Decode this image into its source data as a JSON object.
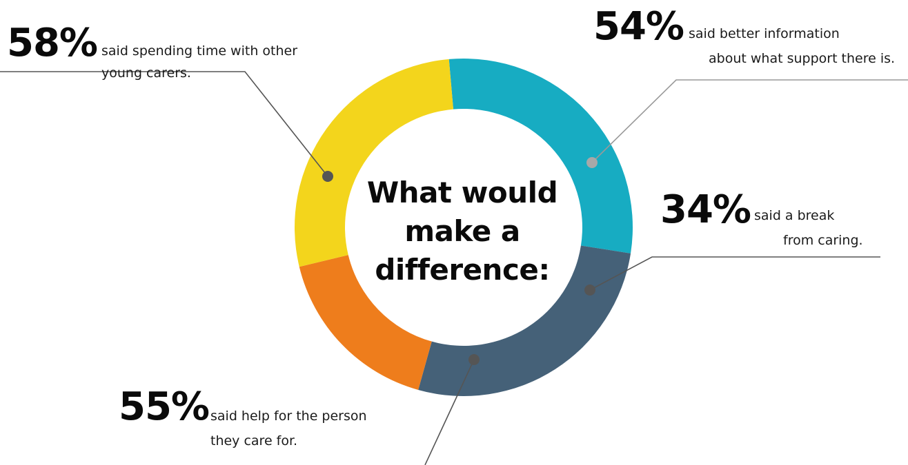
{
  "chart_data": {
    "type": "pie",
    "title": "What would make a difference:",
    "title_lines": [
      "What would",
      "make a",
      "difference:"
    ],
    "style": "donut",
    "segments": [
      {
        "value": 58,
        "label": "58%",
        "text_lines": [
          "said spending time with other",
          "young carers."
        ],
        "color": "#17acc2"
      },
      {
        "value": 54,
        "label": "54%",
        "text_lines": [
          "said better information",
          "about what support there is."
        ],
        "color": "#456178"
      },
      {
        "value": 34,
        "label": "34%",
        "text_lines": [
          "said a break",
          "from caring."
        ],
        "color": "#ee7d1c"
      },
      {
        "value": 55,
        "label": "55%",
        "text_lines": [
          "said help for the person",
          "they care for."
        ],
        "color": "#f3d51c"
      }
    ]
  },
  "colors": {
    "leader_line_dark": "#555555",
    "leader_line_light": "#999999",
    "marker_dark": "#555555",
    "marker_light": "#a8a8a8"
  }
}
